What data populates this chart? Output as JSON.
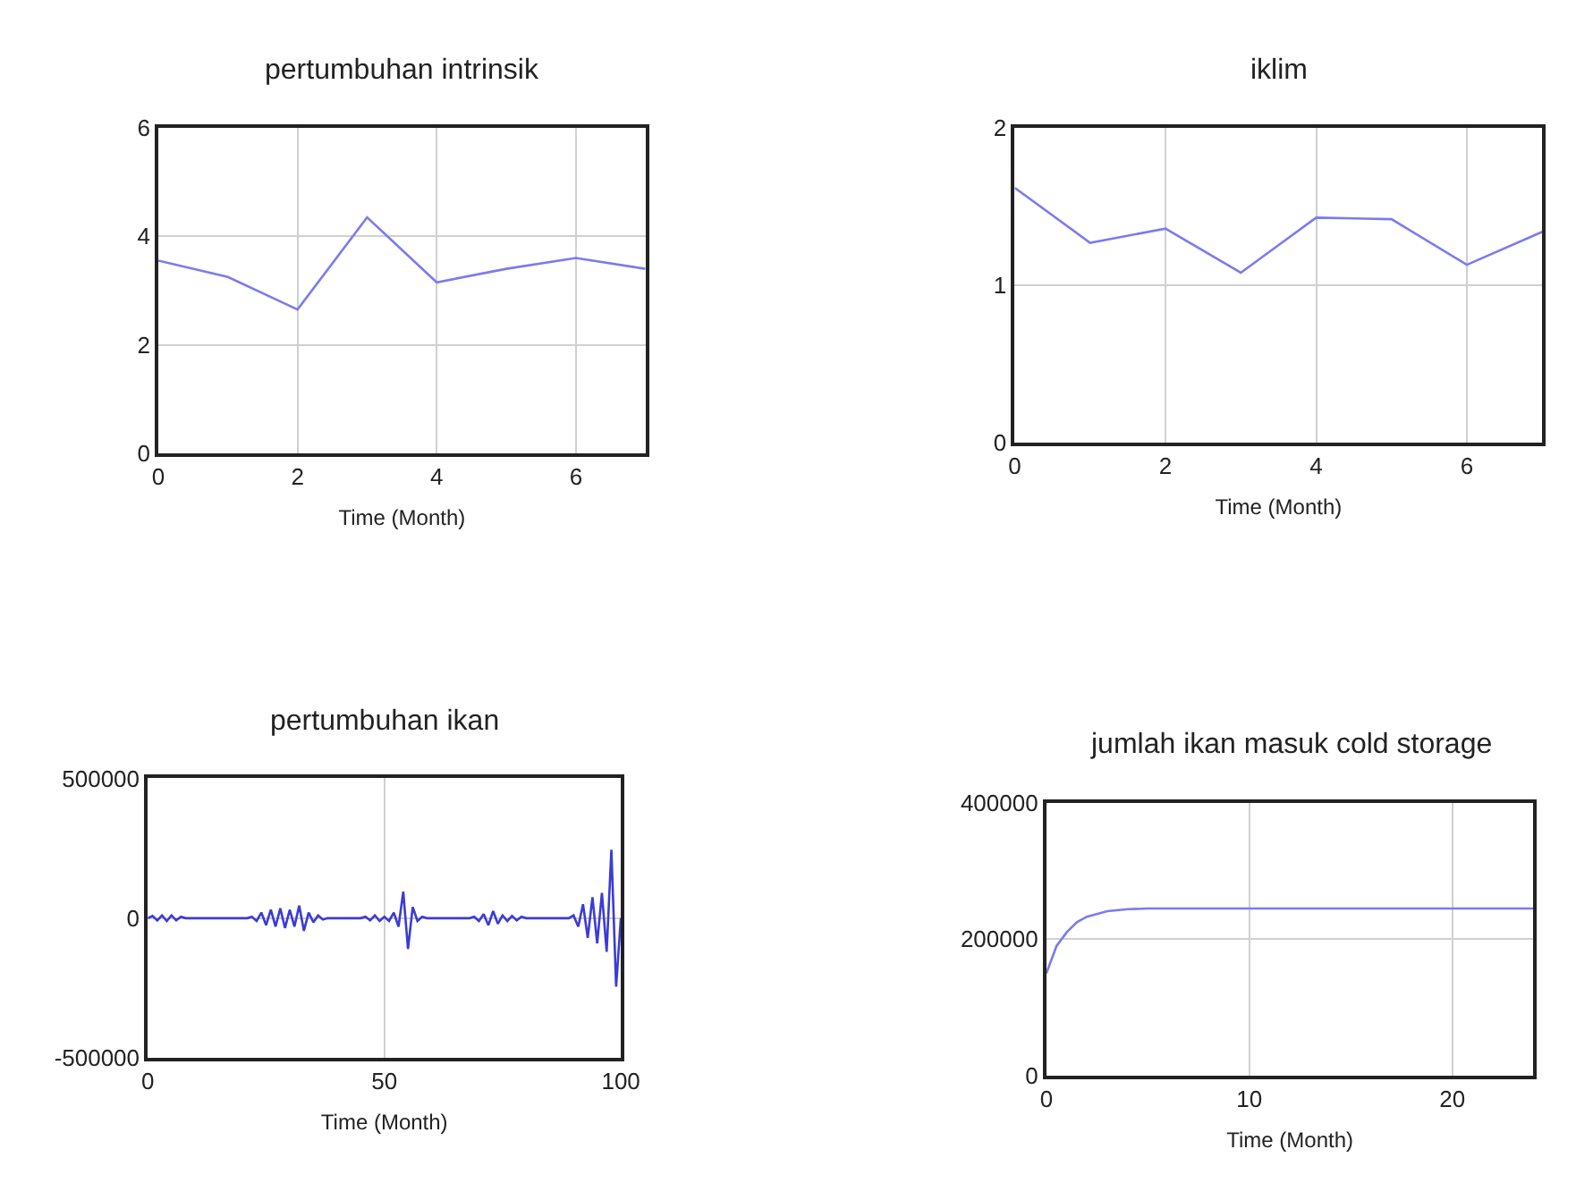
{
  "chart_data": [
    {
      "type": "line",
      "title": "pertumbuhan intrinsik",
      "xlabel": "Time (Month)",
      "x": [
        0,
        1,
        2,
        3,
        4,
        5,
        6,
        7
      ],
      "values": [
        3.55,
        3.25,
        2.65,
        4.35,
        3.15,
        3.4,
        3.6,
        3.4
      ],
      "color": "#7b7bef",
      "xlim": [
        0,
        7
      ],
      "ylim": [
        0,
        6
      ],
      "xticks": [
        0,
        2,
        4,
        6
      ],
      "yticks": [
        0,
        2,
        4,
        6
      ],
      "grid": true
    },
    {
      "type": "line",
      "title": "iklim",
      "xlabel": "Time (Month)",
      "x": [
        0,
        1,
        2,
        3,
        4,
        5,
        6,
        7
      ],
      "values": [
        1.62,
        1.27,
        1.36,
        1.08,
        1.43,
        1.42,
        1.13,
        1.34
      ],
      "color": "#7b7bef",
      "xlim": [
        0,
        7
      ],
      "ylim": [
        0,
        2
      ],
      "xticks": [
        0,
        2,
        4,
        6
      ],
      "yticks": [
        0,
        1,
        2
      ],
      "grid": true
    },
    {
      "type": "line",
      "title": "pertumbuhan ikan",
      "xlabel": "Time (Month)",
      "x": [
        0,
        1,
        2,
        3,
        4,
        5,
        6,
        7,
        8,
        21,
        22,
        23,
        24,
        25,
        26,
        27,
        28,
        29,
        30,
        31,
        32,
        33,
        34,
        35,
        36,
        37,
        38,
        45,
        46,
        47,
        48,
        49,
        50,
        51,
        52,
        53,
        54,
        55,
        56,
        57,
        58,
        59,
        68,
        69,
        70,
        71,
        72,
        73,
        74,
        75,
        76,
        77,
        78,
        79,
        80,
        89,
        90,
        91,
        92,
        93,
        94,
        95,
        96,
        97,
        98,
        99,
        100
      ],
      "values": [
        0,
        8000,
        -8000,
        10000,
        -10000,
        10000,
        -8000,
        5000,
        0,
        0,
        5000,
        -10000,
        20000,
        -25000,
        30000,
        -30000,
        35000,
        -35000,
        30000,
        -30000,
        45000,
        -45000,
        20000,
        -15000,
        10000,
        -5000,
        0,
        0,
        5000,
        -8000,
        10000,
        -10000,
        5000,
        -10000,
        20000,
        -30000,
        95000,
        -110000,
        40000,
        -10000,
        5000,
        0,
        0,
        5000,
        -10000,
        15000,
        -25000,
        25000,
        -20000,
        10000,
        -10000,
        8000,
        -8000,
        5000,
        0,
        0,
        10000,
        -30000,
        50000,
        -70000,
        75000,
        -90000,
        90000,
        -120000,
        245000,
        -245000,
        0
      ],
      "color": "#3b3bd6",
      "xlim": [
        0,
        100
      ],
      "ylim": [
        -500000,
        500000
      ],
      "xticks": [
        0,
        50,
        100
      ],
      "yticks": [
        -500000,
        0,
        500000
      ],
      "grid": true
    },
    {
      "type": "line",
      "title": "jumlah ikan masuk cold storage",
      "xlabel": "Time (Month)",
      "x": [
        0,
        0.5,
        1,
        1.5,
        2,
        3,
        4,
        5,
        24
      ],
      "values": [
        150000,
        190000,
        210000,
        225000,
        233000,
        241000,
        244000,
        245000,
        245000
      ],
      "color": "#7b7bef",
      "xlim": [
        0,
        24
      ],
      "ylim": [
        0,
        400000
      ],
      "xticks": [
        0,
        10,
        20
      ],
      "yticks": [
        0,
        200000,
        400000
      ],
      "grid": true
    }
  ]
}
